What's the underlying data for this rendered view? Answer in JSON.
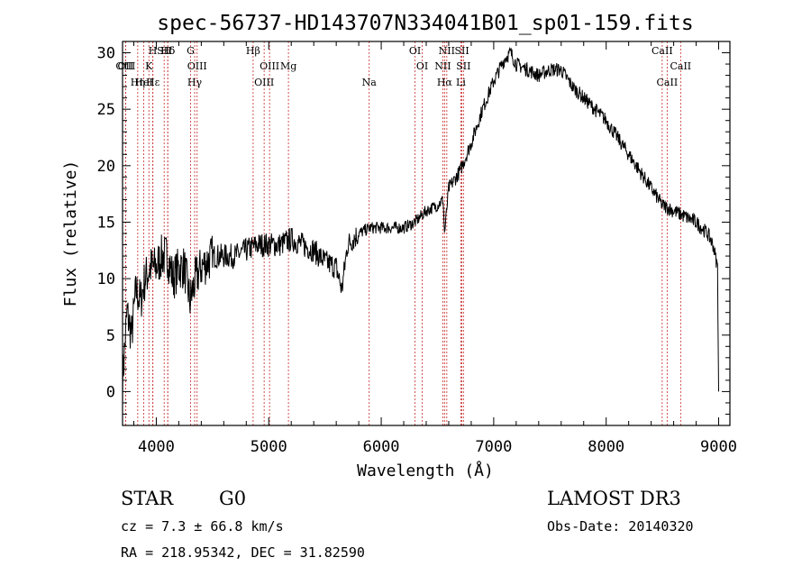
{
  "chart_data": {
    "type": "line",
    "title": "spec-56737-HD143707N334041B01_sp01-159.fits",
    "xlabel": "Wavelength (Å)",
    "ylabel": "Flux (relative)",
    "xlim": [
      3700,
      9100
    ],
    "ylim": [
      -3,
      31
    ],
    "xticks": [
      4000,
      5000,
      6000,
      7000,
      8000,
      9000
    ],
    "yticks": [
      0,
      5,
      10,
      15,
      20,
      25,
      30
    ],
    "xtick_labels": [
      "4000",
      "5000",
      "6000",
      "7000",
      "8000",
      "9000"
    ],
    "ytick_labels": [
      "0",
      "5",
      "10",
      "15",
      "20",
      "25",
      "30"
    ],
    "grid": false,
    "series": [
      {
        "name": "flux",
        "x": [
          3700,
          3740,
          3780,
          3820,
          3860,
          3900,
          3950,
          4000,
          4050,
          4100,
          4150,
          4200,
          4250,
          4300,
          4350,
          4400,
          4500,
          4600,
          4700,
          4800,
          4900,
          5000,
          5100,
          5200,
          5300,
          5400,
          5500,
          5600,
          5650,
          5700,
          5800,
          5900,
          6000,
          6100,
          6200,
          6300,
          6400,
          6500,
          6550,
          6563,
          6600,
          6700,
          6800,
          6900,
          7000,
          7100,
          7150,
          7200,
          7300,
          7400,
          7500,
          7600,
          7700,
          7800,
          7900,
          8000,
          8100,
          8200,
          8300,
          8400,
          8500,
          8600,
          8700,
          8800,
          8900,
          8950,
          8990,
          9000
        ],
        "y": [
          1,
          7,
          5,
          9,
          8,
          10,
          11,
          11,
          12,
          12,
          10,
          11,
          11,
          8,
          10,
          11,
          12,
          12,
          12,
          12.5,
          13,
          13,
          13,
          13.5,
          13,
          12.5,
          11.5,
          11,
          9,
          13,
          14,
          14.5,
          14.5,
          14.5,
          14.5,
          15,
          16,
          16.5,
          17,
          14,
          18,
          19.5,
          22,
          25,
          27.5,
          29.5,
          30,
          29,
          28.5,
          28,
          28.5,
          28.5,
          27,
          26,
          25,
          24,
          22.5,
          21,
          19.5,
          18,
          16.5,
          16,
          15.5,
          15,
          14,
          13,
          11,
          0
        ]
      }
    ],
    "line_markers": [
      {
        "label": "Hδ",
        "x": 4102
      },
      {
        "label": "K",
        "x": 3934
      },
      {
        "label": "Hε",
        "x": 3970
      },
      {
        "label": "Hδ",
        "x": 4102
      },
      {
        "label": "OIII",
        "x": 4363
      },
      {
        "label": "Hγ",
        "x": 4341
      },
      {
        "label": "G",
        "x": 4305
      },
      {
        "label": "OII",
        "x": 3727
      },
      {
        "label": "HeI",
        "x": 3889
      },
      {
        "label": "SII",
        "x": 4070
      },
      {
        "label": "OIII",
        "x": 3727
      },
      {
        "label": "Hη",
        "x": 3835
      },
      {
        "label": "H",
        "x": 3969
      },
      {
        "label": "OIII",
        "x": 5007
      },
      {
        "label": "OIII",
        "x": 4959
      },
      {
        "label": "Hβ",
        "x": 4861
      },
      {
        "label": "Mg",
        "x": 5175
      },
      {
        "label": "Na",
        "x": 5893
      },
      {
        "label": "OI",
        "x": 6300
      },
      {
        "label": "OI",
        "x": 6364
      },
      {
        "label": "Hα",
        "x": 6563
      },
      {
        "label": "SII",
        "x": 6717
      },
      {
        "label": "NII",
        "x": 6548
      },
      {
        "label": "Li",
        "x": 6708
      },
      {
        "label": "NII",
        "x": 6583
      },
      {
        "label": "SII",
        "x": 6731
      },
      {
        "label": "CaII",
        "x": 8542
      },
      {
        "label": "CaII",
        "x": 8498
      },
      {
        "label": "CaII",
        "x": 8662
      }
    ]
  },
  "info": {
    "class_label": "STAR",
    "subclass": "G0",
    "survey": "LAMOST DR3",
    "cz": "cz = 7.3 ± 66.8 km/s",
    "obs_date": "Obs-Date: 20140320",
    "coords": "RA = 218.95342, DEC =  31.82590"
  }
}
